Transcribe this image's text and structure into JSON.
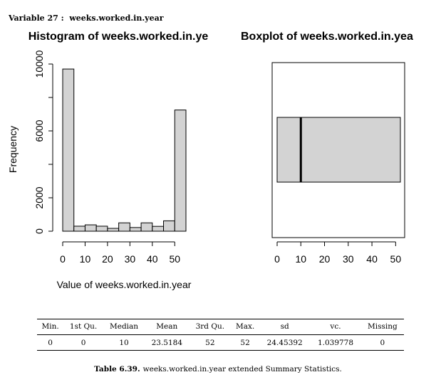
{
  "header": {
    "label": "Variable 27 :",
    "name": "weeks.worked.in.year"
  },
  "histogram": {
    "title": "Histogram of weeks.worked.in.ye",
    "xlabel": "Value of weeks.worked.in.year",
    "ylabel": "Frequency"
  },
  "boxplot": {
    "title": "Boxplot of weeks.worked.in.yea"
  },
  "chart_data": [
    {
      "type": "bar",
      "title": "Histogram of weeks.worked.in.ye",
      "xlabel": "Value of weeks.worked.in.year",
      "ylabel": "Frequency",
      "bins": [
        [
          0,
          5
        ],
        [
          5,
          10
        ],
        [
          10,
          15
        ],
        [
          15,
          20
        ],
        [
          20,
          25
        ],
        [
          25,
          30
        ],
        [
          30,
          35
        ],
        [
          35,
          40
        ],
        [
          40,
          45
        ],
        [
          45,
          50
        ],
        [
          50,
          55
        ]
      ],
      "values": [
        9700,
        300,
        380,
        300,
        170,
        500,
        220,
        500,
        290,
        620,
        7250
      ],
      "xlim": [
        0,
        55
      ],
      "ylim": [
        0,
        10000
      ],
      "xticks": [
        0,
        10,
        20,
        30,
        40,
        50
      ],
      "yticks": [
        0,
        2000,
        6000,
        10000
      ],
      "fill": "#d3d3d3"
    },
    {
      "type": "box",
      "title": "Boxplot of weeks.worked.in.yea",
      "orientation": "horizontal",
      "min": 0,
      "q1": 0,
      "median": 10,
      "q3": 52,
      "max": 52,
      "xlim": [
        0,
        52
      ],
      "xticks": [
        0,
        10,
        20,
        30,
        40,
        50
      ],
      "fill": "#d3d3d3"
    }
  ],
  "table": {
    "headers": [
      "Min.",
      "1st Qu.",
      "Median",
      "Mean",
      "3rd Qu.",
      "Max.",
      "sd",
      "vc.",
      "Missing"
    ],
    "values": [
      "0",
      "0",
      "10",
      "23.5184",
      "52",
      "52",
      "24.45392",
      "1.039778",
      "0"
    ]
  },
  "caption": {
    "label": "Table 6.39.",
    "text": "weeks.worked.in.year extended Summary Statistics."
  }
}
